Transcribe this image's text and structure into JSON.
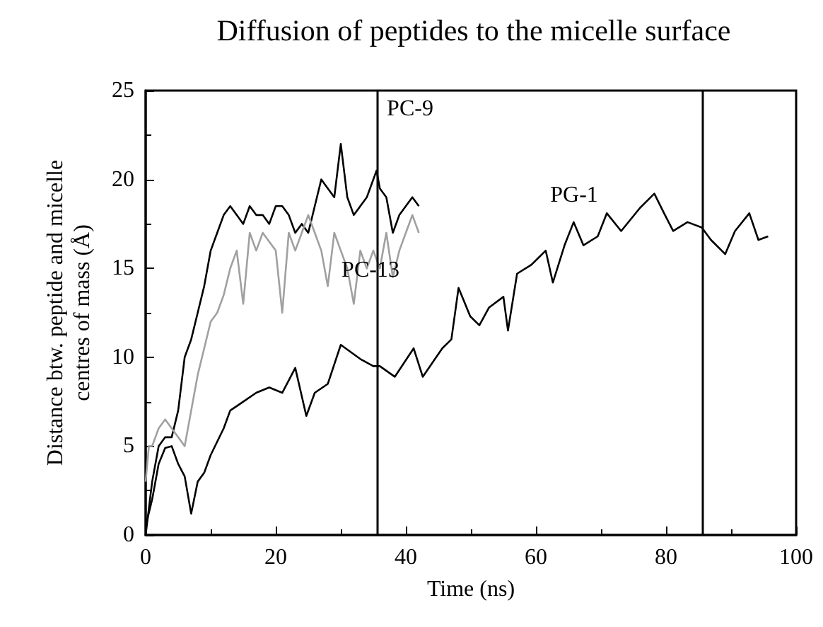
{
  "chart_data": {
    "type": "line",
    "title": "Diffusion of peptides to the micelle surface",
    "xlabel": "Time (ns)",
    "ylabel": "Distance btw. peptide and micelle\ncentres of mass (Å)",
    "xlim": [
      0,
      100
    ],
    "xticks": [
      0,
      20,
      40,
      60,
      80,
      100
    ],
    "ylim": [
      0,
      25
    ],
    "yticks": [
      0,
      5,
      10,
      15,
      20,
      25
    ],
    "grid": false,
    "marker": "none",
    "line_style": "solid",
    "series": [
      {
        "name": "PC-9",
        "color": "#000000",
        "x": [
          0,
          1,
          2,
          3,
          4,
          5,
          6,
          7,
          8,
          9,
          10,
          11,
          12,
          13,
          14,
          15,
          16,
          17,
          18,
          19,
          20,
          21,
          22,
          23,
          24,
          25,
          26,
          27,
          28,
          29,
          30,
          31,
          32,
          33,
          34,
          35,
          35.5,
          36,
          37,
          38,
          39,
          40,
          41,
          42
        ],
        "values": [
          0,
          3,
          5,
          5.5,
          5.5,
          7,
          10,
          11,
          12.5,
          14,
          16,
          17,
          18,
          18.5,
          18,
          17.5,
          18.5,
          18,
          18,
          17.5,
          18.5,
          18.5,
          18,
          17,
          17.5,
          17,
          18.5,
          20,
          19.5,
          19,
          22,
          19,
          18,
          18.5,
          19,
          20,
          20.5,
          19.5,
          19,
          17,
          18,
          18.5,
          19,
          18.5
        ]
      },
      {
        "name": "PC-13",
        "color": "#a0a0a0",
        "x": [
          0,
          0.5,
          1,
          2,
          3,
          4,
          5,
          6,
          7,
          8,
          9,
          10,
          11,
          12,
          13,
          14,
          15,
          16,
          17,
          18,
          19,
          20,
          21,
          22,
          23,
          24,
          25,
          26,
          27,
          28,
          29,
          30,
          31,
          32,
          33,
          34,
          35,
          36,
          37,
          38,
          39,
          40,
          41,
          42
        ],
        "values": [
          3,
          5,
          5,
          6,
          6.5,
          6,
          5.5,
          5,
          7,
          9,
          10.5,
          12,
          12.5,
          13.5,
          15,
          16,
          13,
          17,
          16,
          17,
          16.5,
          16,
          12.5,
          17,
          16,
          17,
          18,
          17,
          16,
          14,
          17,
          16,
          15,
          13,
          16,
          15,
          16,
          15,
          17,
          14.5,
          16,
          17,
          18,
          17
        ]
      },
      {
        "name": "PG-1",
        "color": "#000000",
        "x": [
          0,
          1,
          2,
          3,
          4,
          5,
          6,
          7,
          8,
          9,
          10,
          12,
          13,
          15,
          17,
          19,
          21,
          23,
          24.7,
          26,
          28,
          30,
          33,
          35,
          36,
          38.3,
          41.2,
          42.6,
          45.6,
          47,
          48.1,
          49.9,
          51.3,
          52.8,
          55,
          55.7,
          57.1,
          59.3,
          61.5,
          62.6,
          64.4,
          65.8,
          67.3,
          69.5,
          70.9,
          73.1,
          76,
          78.2,
          79.7,
          81.1,
          83.3,
          85.5,
          86.9,
          89.1,
          90.6,
          92.8,
          94.2,
          95.7
        ],
        "values": [
          0.5,
          2,
          4,
          4.9,
          5,
          4,
          3.3,
          1.2,
          3,
          3.5,
          4.5,
          6,
          7,
          7.5,
          8,
          8.3,
          8,
          9.4,
          6.7,
          8,
          8.5,
          10.7,
          9.9,
          9.5,
          9.5,
          8.9,
          10.5,
          8.9,
          10.5,
          11,
          13.9,
          12.3,
          11.8,
          12.8,
          13.4,
          11.5,
          14.7,
          15.2,
          16,
          14.2,
          16.3,
          17.6,
          16.3,
          16.8,
          18.1,
          17.1,
          18.4,
          19.2,
          18.1,
          17.1,
          17.6,
          17.3,
          16.6,
          15.8,
          17.1,
          18.1,
          16.6,
          16.8
        ]
      }
    ],
    "ref_lines": [
      {
        "axis": "x",
        "value": 35.5,
        "color": "#000000"
      },
      {
        "axis": "x",
        "value": 85.5,
        "color": "#000000"
      }
    ]
  }
}
